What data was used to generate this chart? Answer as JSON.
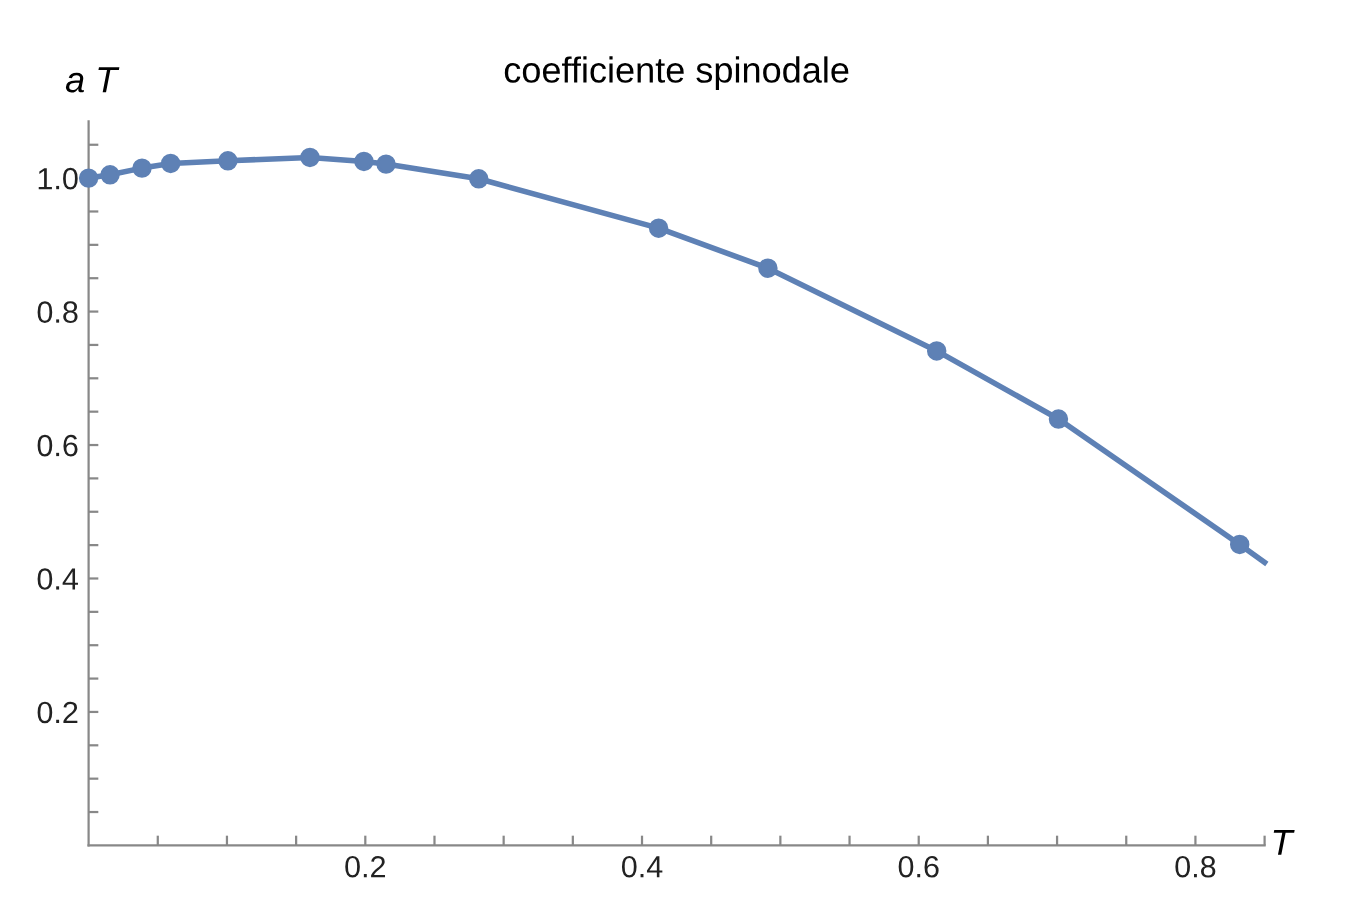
{
  "chart_data": {
    "type": "scatter",
    "title": "coefficiente spinodale",
    "xlabel": "T",
    "ylabel": "a T",
    "xlim": [
      0,
      0.85
    ],
    "ylim": [
      0,
      1.085
    ],
    "xticks": [
      {
        "value": 0.05,
        "label": null
      },
      {
        "value": 0.1,
        "label": null
      },
      {
        "value": 0.15,
        "label": null
      },
      0.2,
      {
        "value": 0.25,
        "label": null
      },
      {
        "value": 0.3,
        "label": null
      },
      {
        "value": 0.35,
        "label": null
      },
      0.4,
      {
        "value": 0.45,
        "label": null
      },
      {
        "value": 0.5,
        "label": null
      },
      {
        "value": 0.55,
        "label": null
      },
      0.6,
      {
        "value": 0.65,
        "label": null
      },
      {
        "value": 0.7,
        "label": null
      },
      {
        "value": 0.75,
        "label": null
      },
      0.8,
      {
        "value": 0.85,
        "label": null
      }
    ],
    "yticks": [
      {
        "value": 0.05,
        "label": null
      },
      {
        "value": 0.1,
        "label": null
      },
      {
        "value": 0.15,
        "label": null
      },
      0.2,
      {
        "value": 0.25,
        "label": null
      },
      {
        "value": 0.3,
        "label": null
      },
      {
        "value": 0.35,
        "label": null
      },
      0.4,
      {
        "value": 0.45,
        "label": null
      },
      {
        "value": 0.5,
        "label": null
      },
      {
        "value": 0.55,
        "label": null
      },
      0.6,
      {
        "value": 0.65,
        "label": null
      },
      {
        "value": 0.7,
        "label": null
      },
      {
        "value": 0.75,
        "label": null
      },
      0.8,
      {
        "value": 0.85,
        "label": null
      },
      {
        "value": 0.9,
        "label": null
      },
      {
        "value": 0.95,
        "label": null
      },
      {
        "value": 1.0,
        "label": "1.0"
      },
      {
        "value": 1.05,
        "label": null
      }
    ],
    "grid": false,
    "legend": false,
    "marker": "circle",
    "series": [
      {
        "type": "line",
        "color": "#5e81b5",
        "x": [
          0,
          0.0155,
          0.0386,
          0.0593,
          0.1007,
          0.16,
          0.199,
          0.215,
          0.282,
          0.412,
          0.491,
          0.613,
          0.701,
          0.832,
          0.85
        ],
        "values": [
          1.0,
          1.005,
          1.015,
          1.022,
          1.026,
          1.031,
          1.025,
          1.021,
          0.999,
          0.925,
          0.865,
          0.741,
          0.639,
          0.451,
          0.424
        ],
        "marker": "none",
        "line_style": "solid"
      },
      {
        "color": "#5e81b5",
        "x": [
          0,
          0.0155,
          0.0386,
          0.0593,
          0.1007,
          0.16,
          0.199,
          0.215,
          0.282,
          0.412,
          0.491,
          0.613,
          0.701,
          0.832
        ],
        "values": [
          1.0,
          1.005,
          1.015,
          1.022,
          1.026,
          1.031,
          1.025,
          1.021,
          0.999,
          0.925,
          0.865,
          0.741,
          0.639,
          0.451
        ]
      }
    ]
  }
}
